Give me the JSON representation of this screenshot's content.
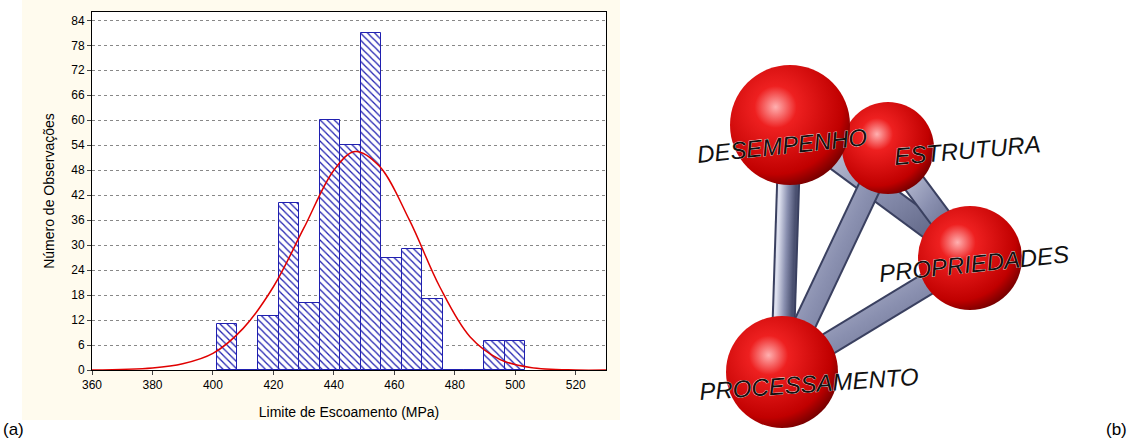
{
  "chart_data": {
    "type": "histogram",
    "panel_label": "(a)",
    "x_label": "Limite de Escoamento (MPa)",
    "y_label": "Número de Observações",
    "bins": [
      401.3,
      408.1,
      414.9,
      421.7,
      428.5,
      435.3,
      442.1,
      448.9,
      455.7,
      462.5,
      469.3,
      476.1,
      482.9,
      489.7,
      496.5,
      503.3
    ],
    "values": [
      11,
      0,
      13,
      40,
      16,
      60,
      54,
      81,
      27,
      29,
      17,
      0,
      0,
      7,
      7
    ],
    "color": "#2020b0",
    "curve": {
      "type": "line",
      "color": "#e00000",
      "x": [
        360,
        380,
        390,
        400,
        410,
        420,
        430,
        440,
        447,
        455,
        465,
        475,
        485,
        495,
        505,
        520,
        530
      ],
      "values": [
        0,
        0.5,
        1.5,
        4,
        10,
        20,
        34,
        48,
        52.5,
        49,
        36,
        20,
        8,
        2.5,
        0.6,
        0,
        0
      ]
    },
    "xlim": [
      360,
      530
    ],
    "xticks": [
      360,
      380,
      400,
      420,
      440,
      460,
      480,
      500,
      520
    ],
    "ylim": [
      0,
      86
    ],
    "yticks": [
      0,
      6,
      12,
      18,
      24,
      30,
      36,
      42,
      48,
      54,
      60,
      66,
      72,
      78,
      84
    ],
    "grid": true
  },
  "diagram": {
    "panel_label": "(b)",
    "nodes": [
      {
        "label": "DESEMPENHO"
      },
      {
        "label": "ESTRUTURA"
      },
      {
        "label": "PROPRIEDADES"
      },
      {
        "label": "PROCESSAMENTO"
      }
    ]
  }
}
